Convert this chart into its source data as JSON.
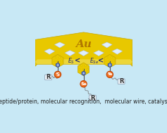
{
  "bg_color": "#c8e8f5",
  "gold_color": "#e8c800",
  "gold_dark": "#c8a800",
  "gold_light": "#f5d800",
  "gold_highlight": "#f0e060",
  "orange_atom": "#f07020",
  "orange_atom_edge": "#c04000",
  "blue_ring": "#4060c0",
  "white_color": "#ffffff",
  "gray_color": "#a0a0a0",
  "yellow_dot": "#ffee00",
  "title_text": "Au",
  "caption": "R = peptide/protein, molecular recognition,  molecular wire, catalyst, etc.",
  "caption_fontsize": 5.5,
  "atom_labels": [
    "S",
    "Se",
    "Te"
  ],
  "r_label": "R"
}
